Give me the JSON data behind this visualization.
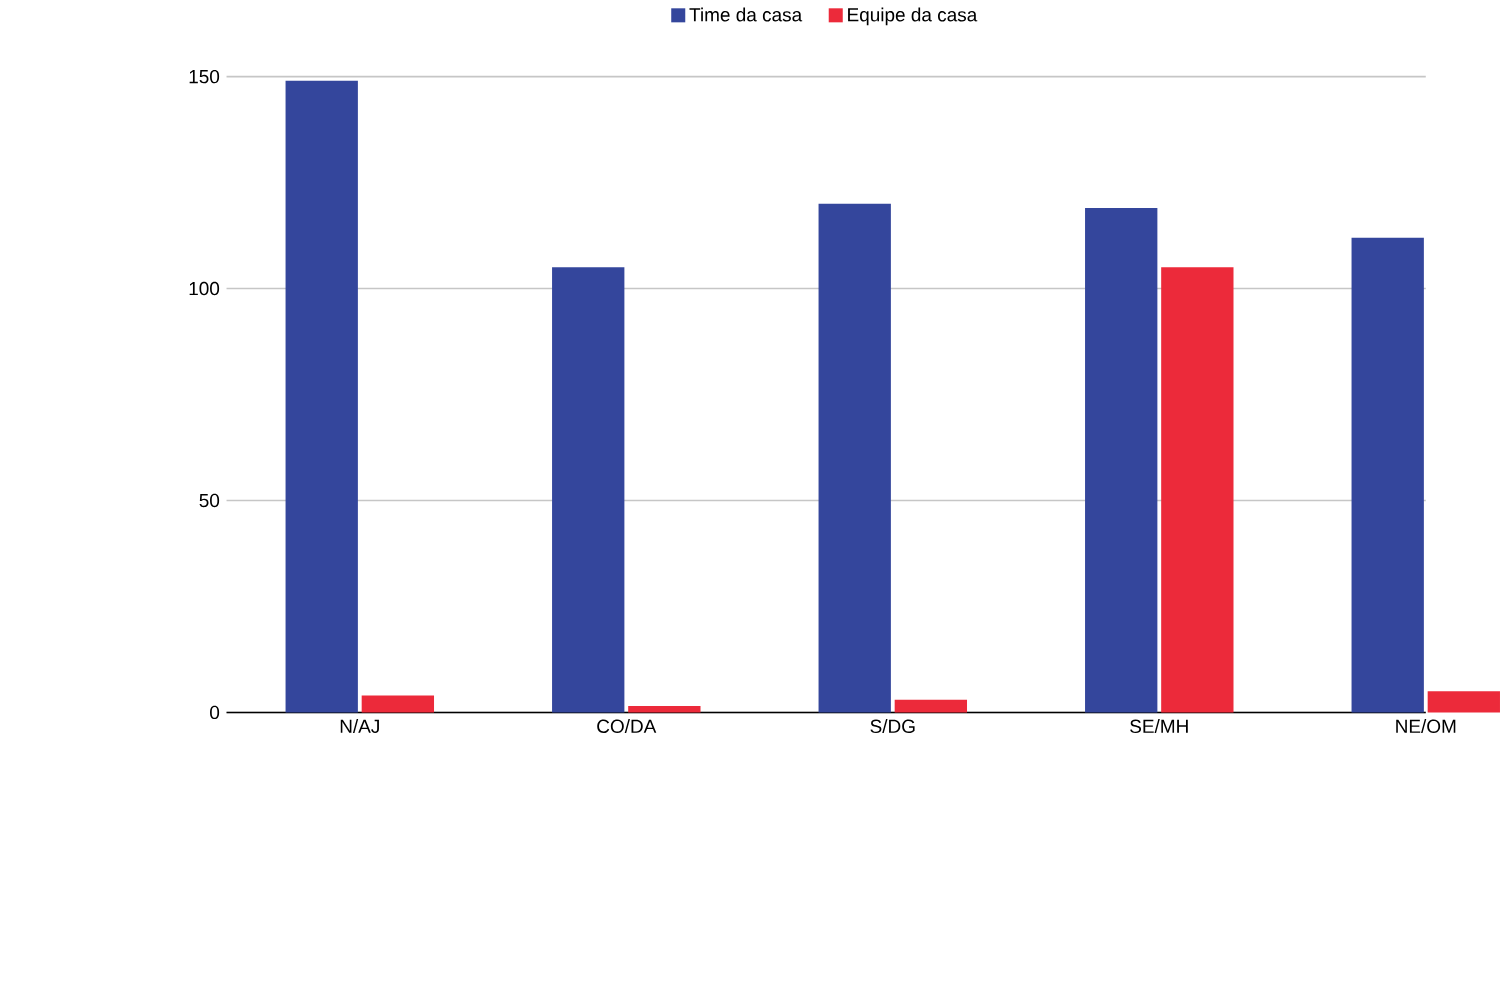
{
  "chart_data": {
    "type": "bar",
    "categories": [
      "N/AJ",
      "CO/DA",
      "S/DG",
      "SE/MH",
      "NE/OM"
    ],
    "series": [
      {
        "name": "Time da casa",
        "color": "#34469c",
        "values": [
          149,
          105,
          120,
          119,
          112
        ]
      },
      {
        "name": "Equipe da casa",
        "color": "#ec2a3a",
        "values": [
          4,
          1.5,
          3,
          105,
          5
        ]
      }
    ],
    "ylim": [
      0,
      150
    ],
    "yticks": [
      0,
      50,
      100,
      150
    ],
    "grid": "y",
    "legend": "top"
  }
}
